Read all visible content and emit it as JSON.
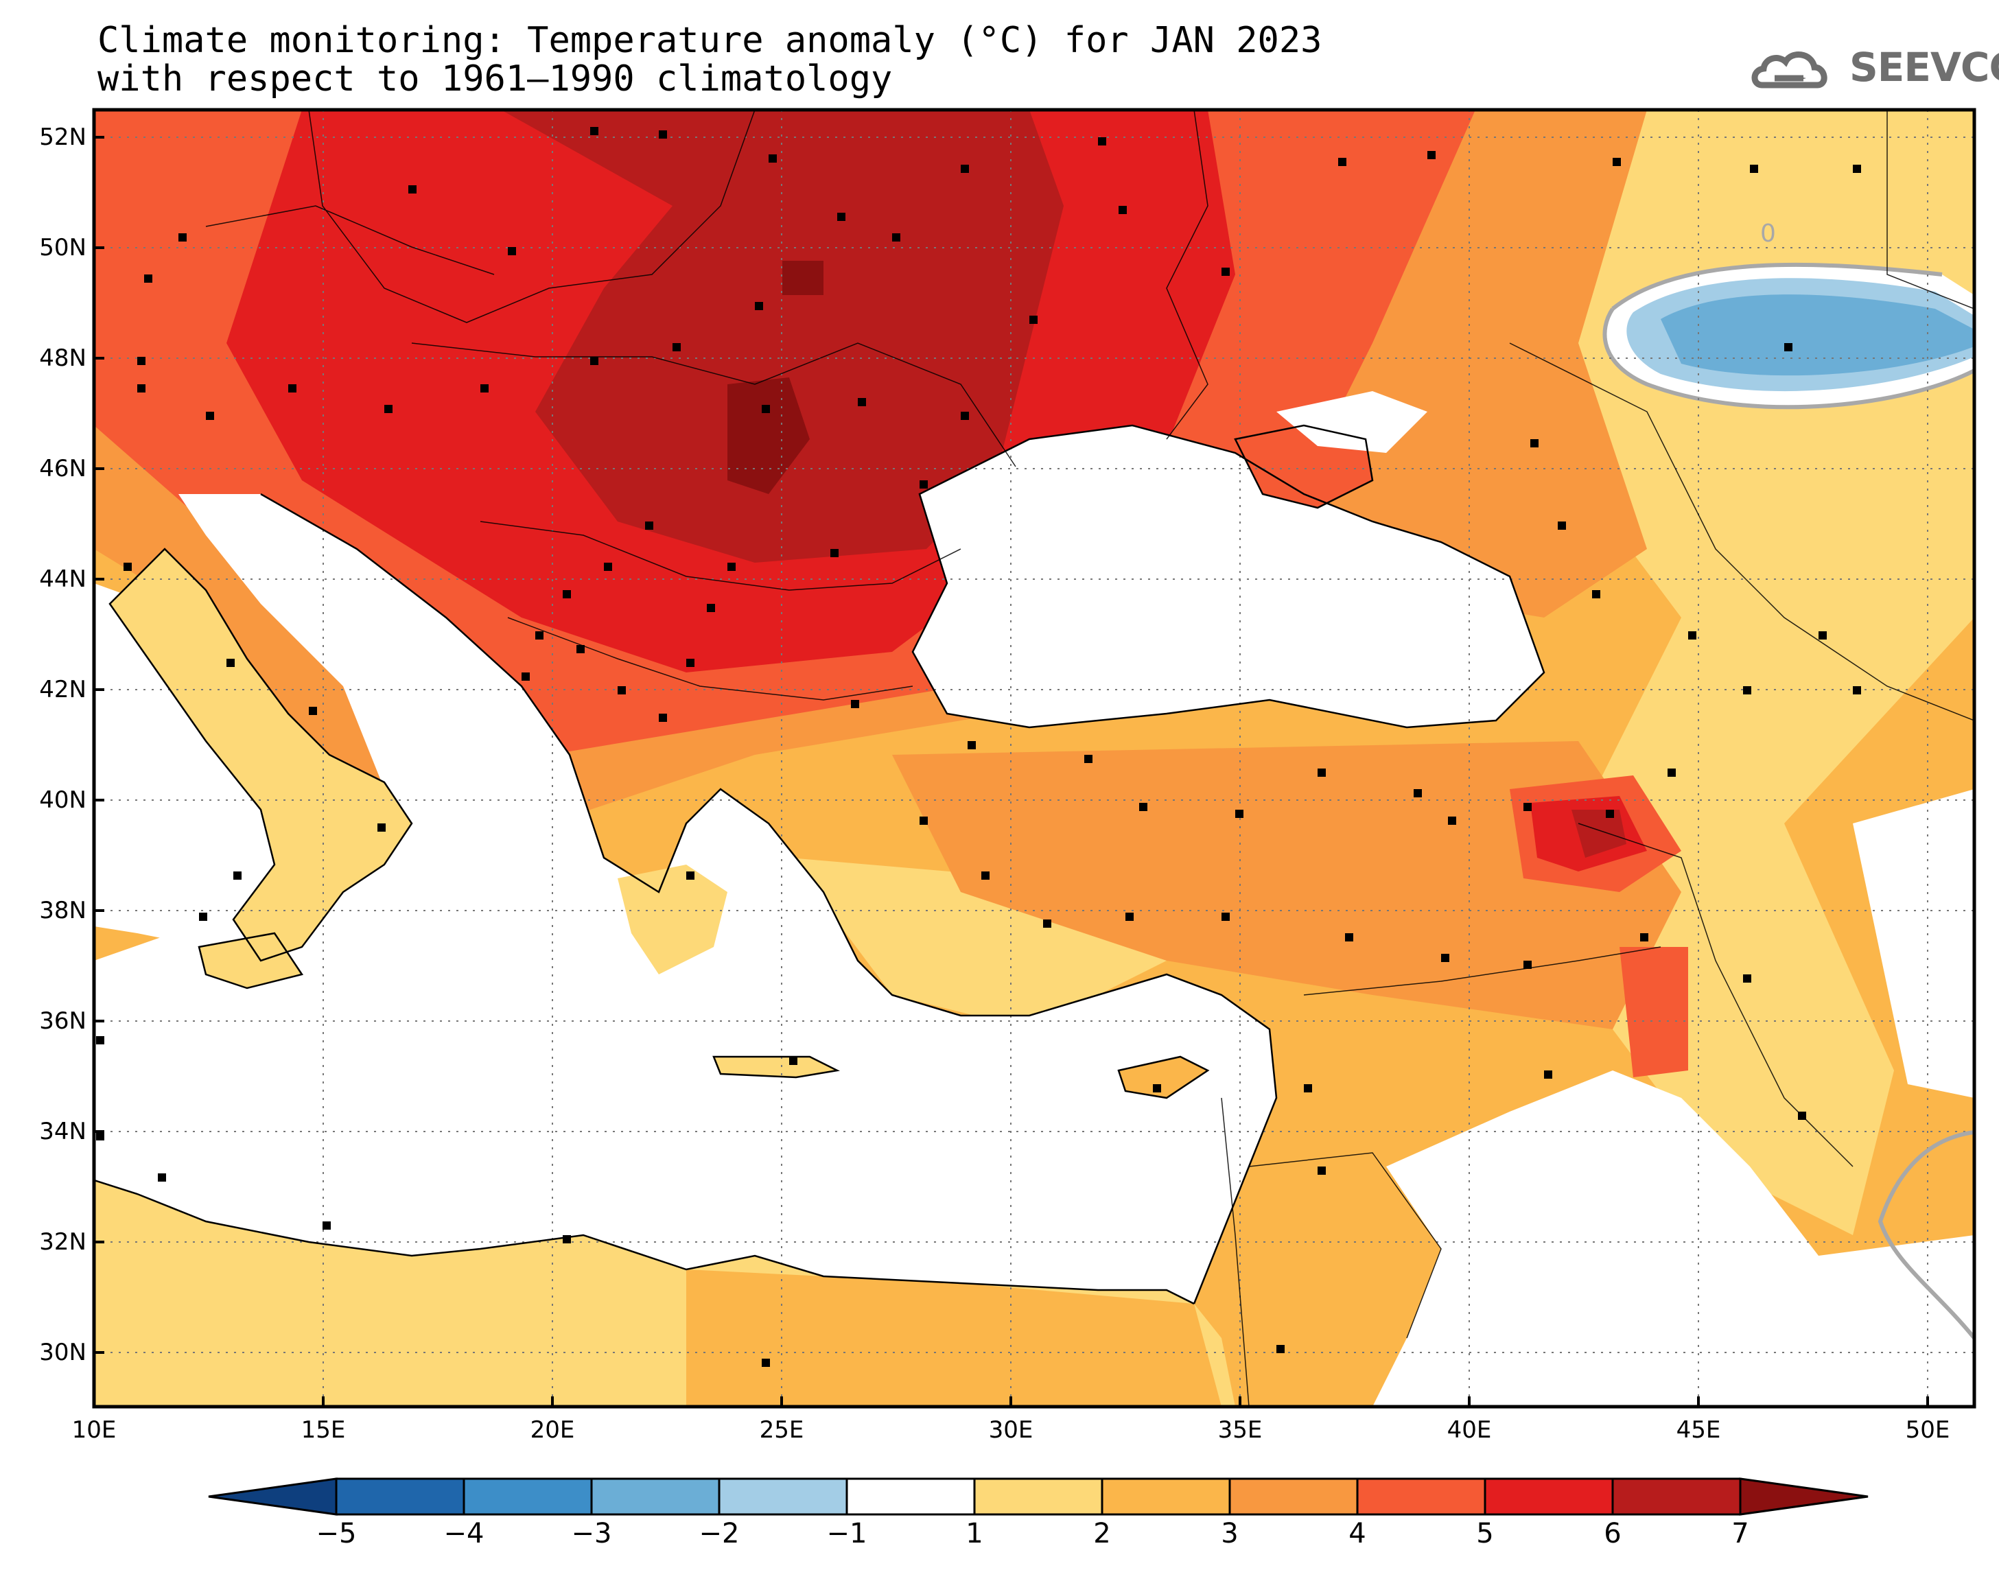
{
  "title": {
    "line1": "Climate monitoring: Temperature anomaly (°C) for JAN 2023",
    "line2": "with respect to 1961–1990 climatology"
  },
  "logo": {
    "text": "SEEVCCC",
    "color": "#6f6f6f"
  },
  "map": {
    "region": "South-East Europe, Mediterranean, Black Sea and Middle East",
    "lon_range": [
      10,
      51
    ],
    "lat_range": [
      29,
      52.5
    ],
    "grid": "dotted",
    "lat_labels": [
      "52N",
      "50N",
      "48N",
      "46N",
      "44N",
      "42N",
      "40N",
      "38N",
      "36N",
      "34N",
      "32N",
      "30N"
    ],
    "lon_labels": [
      "10E",
      "15E",
      "20E",
      "25E",
      "30E",
      "35E",
      "40E",
      "45E",
      "50E"
    ],
    "contour_label": "0",
    "station_markers": "black squares",
    "land_color_nodata": "#ffffff"
  },
  "colorbar": {
    "labels": [
      "−5",
      "−4",
      "−3",
      "−2",
      "−1",
      "1",
      "2",
      "3",
      "4",
      "5",
      "6",
      "7"
    ],
    "colors": [
      "#0e3f7e",
      "#1f66ab",
      "#3d8ec8",
      "#6baed6",
      "#a3cde6",
      "#ffffff",
      "#fdd978",
      "#fbb64a",
      "#f89840",
      "#f55a34",
      "#e31e1f",
      "#b71c1c",
      "#8b1010"
    ]
  }
}
